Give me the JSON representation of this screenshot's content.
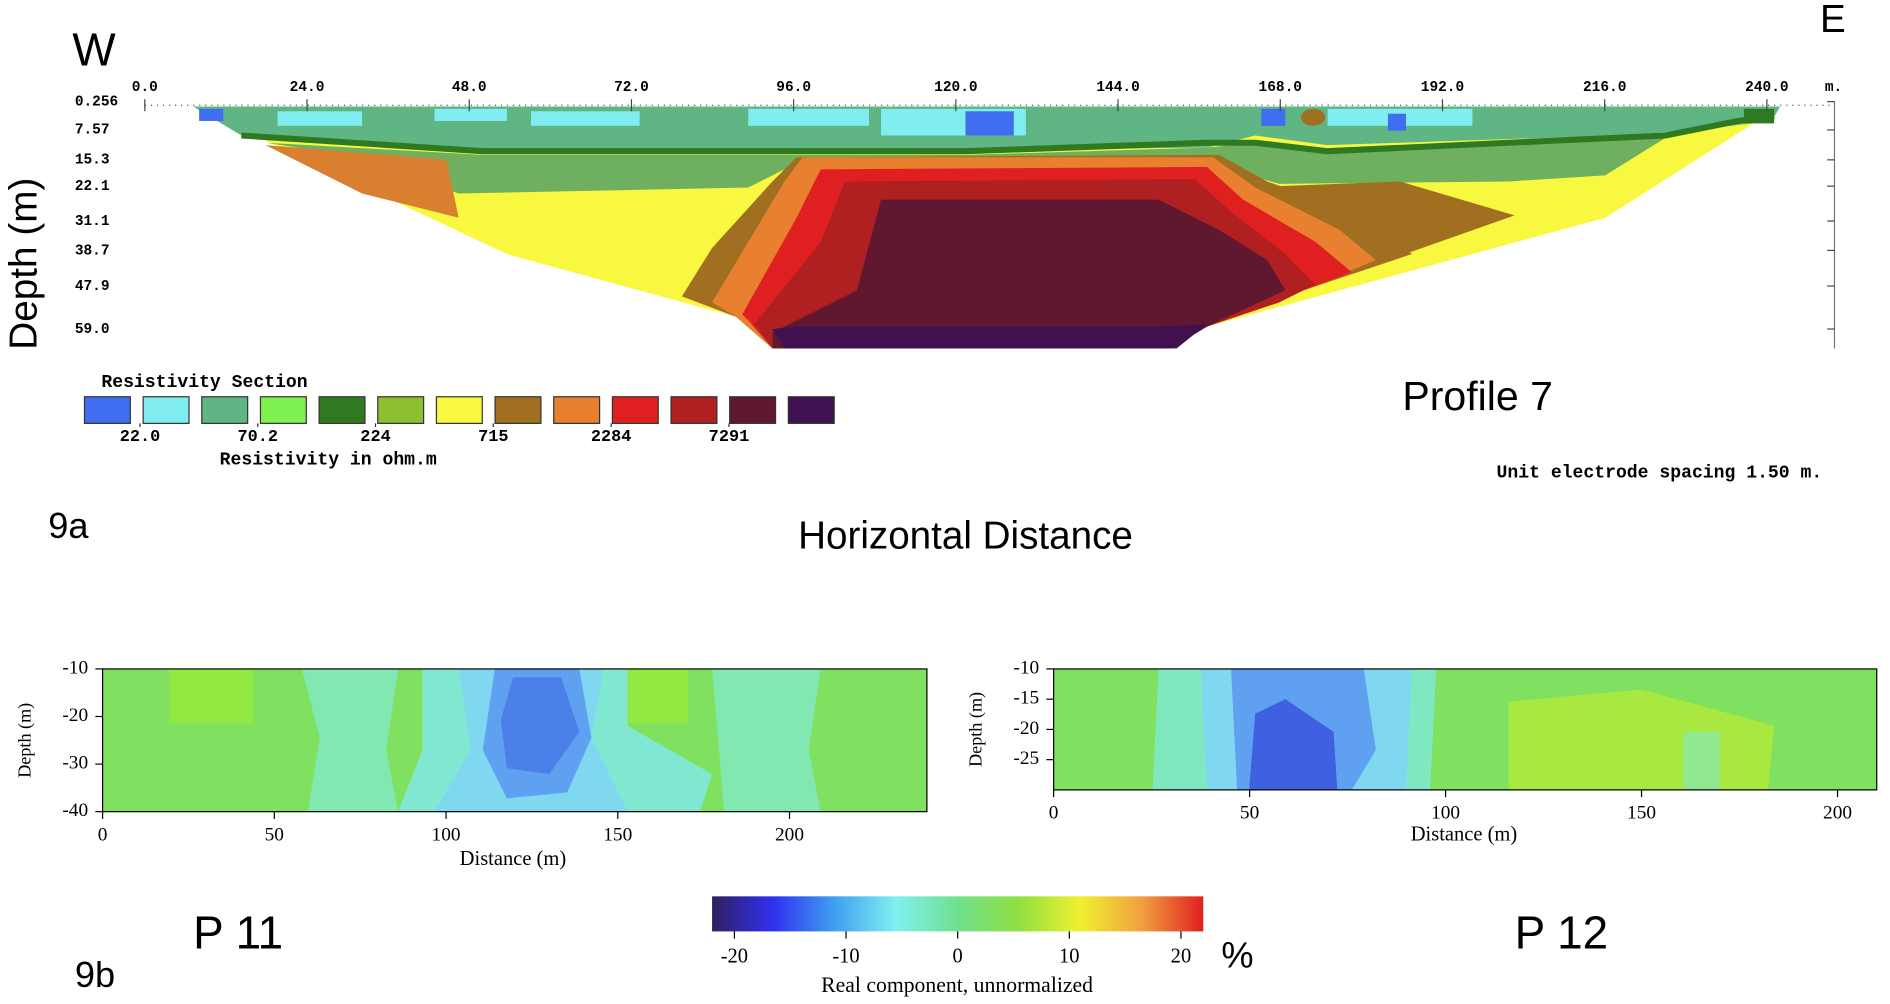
{
  "chart_data": [
    {
      "type": "contour",
      "west": "W",
      "east": "E",
      "ylabel": "Depth (m)",
      "xlabel": "Horizontal Distance",
      "profile": "Profile 7",
      "panel_label": "9a",
      "note": "Unit electrode spacing 1.50 m.",
      "x_unit": "m.",
      "xlim": [
        0,
        250
      ],
      "xticks": [
        {
          "value": 0,
          "label": "0.0"
        },
        {
          "value": 24,
          "label": "24.0"
        },
        {
          "value": 48,
          "label": "48.0"
        },
        {
          "value": 72,
          "label": "72.0"
        },
        {
          "value": 96,
          "label": "96.0"
        },
        {
          "value": 120,
          "label": "120.0"
        },
        {
          "value": 144,
          "label": "144.0"
        },
        {
          "value": 168,
          "label": "168.0"
        },
        {
          "value": 192,
          "label": "192.0"
        },
        {
          "value": 216,
          "label": "216.0"
        },
        {
          "value": 240,
          "label": "240.0"
        }
      ],
      "ylim": [
        0.256,
        59.0
      ],
      "yticks": [
        0.256,
        7.57,
        15.3,
        22.1,
        31.1,
        38.7,
        47.9,
        {
          "value": 59,
          "label": "59.0"
        }
      ],
      "colorbar": {
        "title": "Resistivity Section",
        "label": "Resistivity in ohm.m",
        "log": true,
        "colors": [
          "#3f6ef0",
          "#80eef0",
          "#5fb583",
          "#7ef050",
          "#2f7a20",
          "#8cc030",
          "#f8f840",
          "#a07020",
          "#e88030",
          "#e02020",
          "#b02020",
          "#601830",
          "#401050"
        ],
        "ticks": [
          {
            "value": 22,
            "label": "22.0"
          },
          70.2,
          224,
          715,
          2284,
          7291
        ]
      }
    },
    {
      "type": "contour",
      "title": "P 11",
      "panel_label": "9b",
      "xlabel": "Distance (m)",
      "ylabel": "Depth (m)",
      "xlim": [
        0,
        240
      ],
      "xticks": [
        0,
        50,
        100,
        150,
        200
      ],
      "ylim": [
        -40,
        -10
      ],
      "yticks": [
        -10,
        -20,
        -30,
        -40
      ],
      "colorbar": {
        "label": "Real component, unnormalized",
        "unit": "%",
        "clim": [
          -22,
          22
        ],
        "colors": [
          "#302060",
          "#3030f0",
          "#40a0f0",
          "#80f0f0",
          "#70e090",
          "#90e040",
          "#f0f030",
          "#f0a040",
          "#e02020"
        ],
        "ticks": [
          -20,
          -10,
          0,
          10,
          20
        ]
      }
    },
    {
      "type": "contour",
      "title": "P 12",
      "xlabel": "Distance (m)",
      "ylabel": "Depth (m)",
      "xlim": [
        0,
        210
      ],
      "xticks": [
        0,
        50,
        100,
        150,
        200
      ],
      "ylim": [
        -30,
        -10
      ],
      "yticks": [
        -10,
        -15,
        -20,
        -25
      ]
    }
  ]
}
